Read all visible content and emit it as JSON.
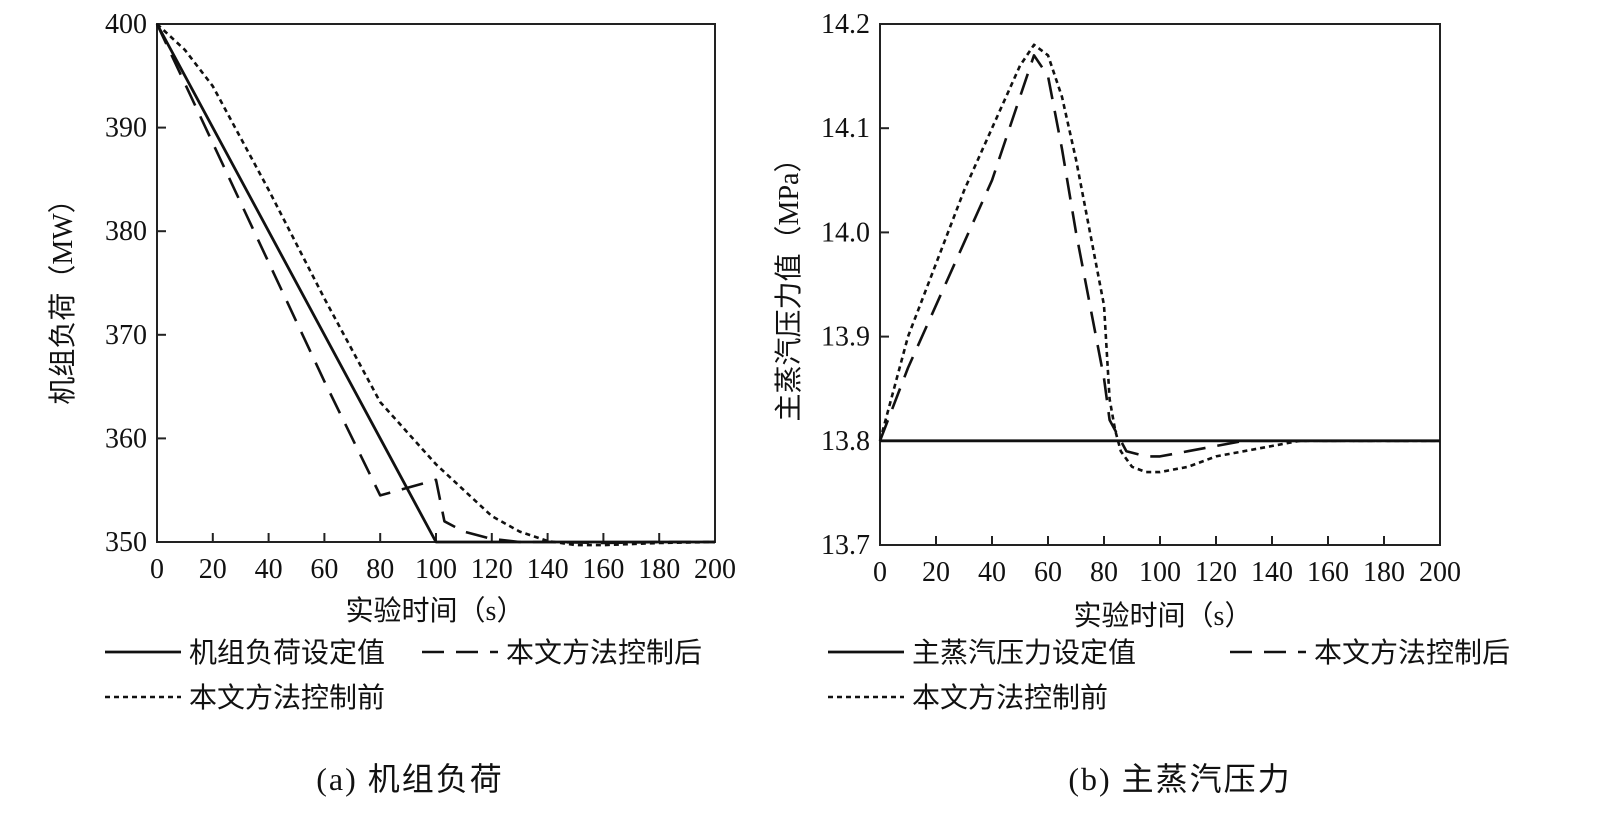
{
  "colors": {
    "line": "#111111",
    "frame": "#222222",
    "background": "#ffffff"
  },
  "chart_data": [
    {
      "type": "line",
      "caption": "(a) 机组负荷",
      "xlabel": "实验时间（s）",
      "ylabel": "机组负荷（MW）",
      "xlim": [
        0,
        200
      ],
      "ylim": [
        350,
        400
      ],
      "xticks": [
        0,
        20,
        40,
        60,
        80,
        100,
        120,
        140,
        160,
        180,
        200
      ],
      "yticks": [
        350,
        360,
        370,
        380,
        390,
        400
      ],
      "ytick_labels": [
        "350",
        "360",
        "370",
        "380",
        "390",
        "400"
      ],
      "grid": false,
      "legend_position": "bottom",
      "series": [
        {
          "name": "机组负荷设定值",
          "style": "solid",
          "x": [
            0,
            100,
            200
          ],
          "y": [
            400,
            350,
            350
          ]
        },
        {
          "name": "本文方法控制后",
          "style": "dashed",
          "x": [
            0,
            20,
            40,
            60,
            80,
            100,
            103,
            110,
            120,
            130,
            140,
            160,
            180,
            200
          ],
          "y": [
            400,
            388.5,
            377,
            365.5,
            354.5,
            356,
            352,
            351,
            350.3,
            350,
            350,
            349.9,
            350,
            350
          ]
        },
        {
          "name": "本文方法控制前",
          "style": "dotted",
          "x": [
            0,
            10,
            20,
            40,
            60,
            80,
            100,
            110,
            120,
            130,
            140,
            150,
            160,
            180,
            200
          ],
          "y": [
            400,
            397.5,
            394,
            384,
            373.5,
            363.5,
            357.5,
            355,
            352.5,
            351,
            350.1,
            349.7,
            349.7,
            349.9,
            350
          ]
        }
      ]
    },
    {
      "type": "line",
      "caption": "(b) 主蒸汽压力",
      "xlabel": "实验时间（s）",
      "ylabel": "主蒸汽压力值（MPa）",
      "xlim": [
        0,
        200
      ],
      "ylim": [
        13.7,
        14.2
      ],
      "xticks": [
        0,
        20,
        40,
        60,
        80,
        100,
        120,
        140,
        160,
        180,
        200
      ],
      "yticks": [
        13.7,
        13.8,
        13.9,
        14.0,
        14.1,
        14.2
      ],
      "ytick_labels": [
        "13.7",
        "13.8",
        "13.9",
        "14.0",
        "14.1",
        "14.2"
      ],
      "grid": false,
      "legend_position": "bottom",
      "series": [
        {
          "name": "主蒸汽压力设定值",
          "style": "solid",
          "x": [
            0,
            200
          ],
          "y": [
            13.8,
            13.8
          ]
        },
        {
          "name": "本文方法控制后",
          "style": "dashed",
          "x": [
            0,
            10,
            20,
            30,
            40,
            50,
            55,
            60,
            65,
            70,
            75,
            80,
            82,
            84,
            88,
            95,
            100,
            110,
            120,
            130,
            140,
            150,
            160,
            180,
            200
          ],
          "y": [
            13.8,
            13.87,
            13.93,
            13.99,
            14.05,
            14.13,
            14.17,
            14.15,
            14.08,
            14.0,
            13.93,
            13.86,
            13.82,
            13.81,
            13.79,
            13.785,
            13.785,
            13.79,
            13.795,
            13.8,
            13.8,
            13.8,
            13.8,
            13.8,
            13.8
          ]
        },
        {
          "name": "本文方法控制前",
          "style": "dotted",
          "x": [
            0,
            5,
            10,
            20,
            30,
            40,
            50,
            55,
            60,
            65,
            70,
            75,
            80,
            82,
            84,
            86,
            90,
            95,
            100,
            110,
            120,
            130,
            140,
            150,
            160,
            180,
            200
          ],
          "y": [
            13.8,
            13.85,
            13.9,
            13.97,
            14.04,
            14.1,
            14.16,
            14.18,
            14.17,
            14.13,
            14.07,
            14.0,
            13.93,
            13.84,
            13.81,
            13.79,
            13.775,
            13.77,
            13.77,
            13.775,
            13.785,
            13.79,
            13.795,
            13.8,
            13.8,
            13.8,
            13.8
          ]
        }
      ]
    }
  ]
}
